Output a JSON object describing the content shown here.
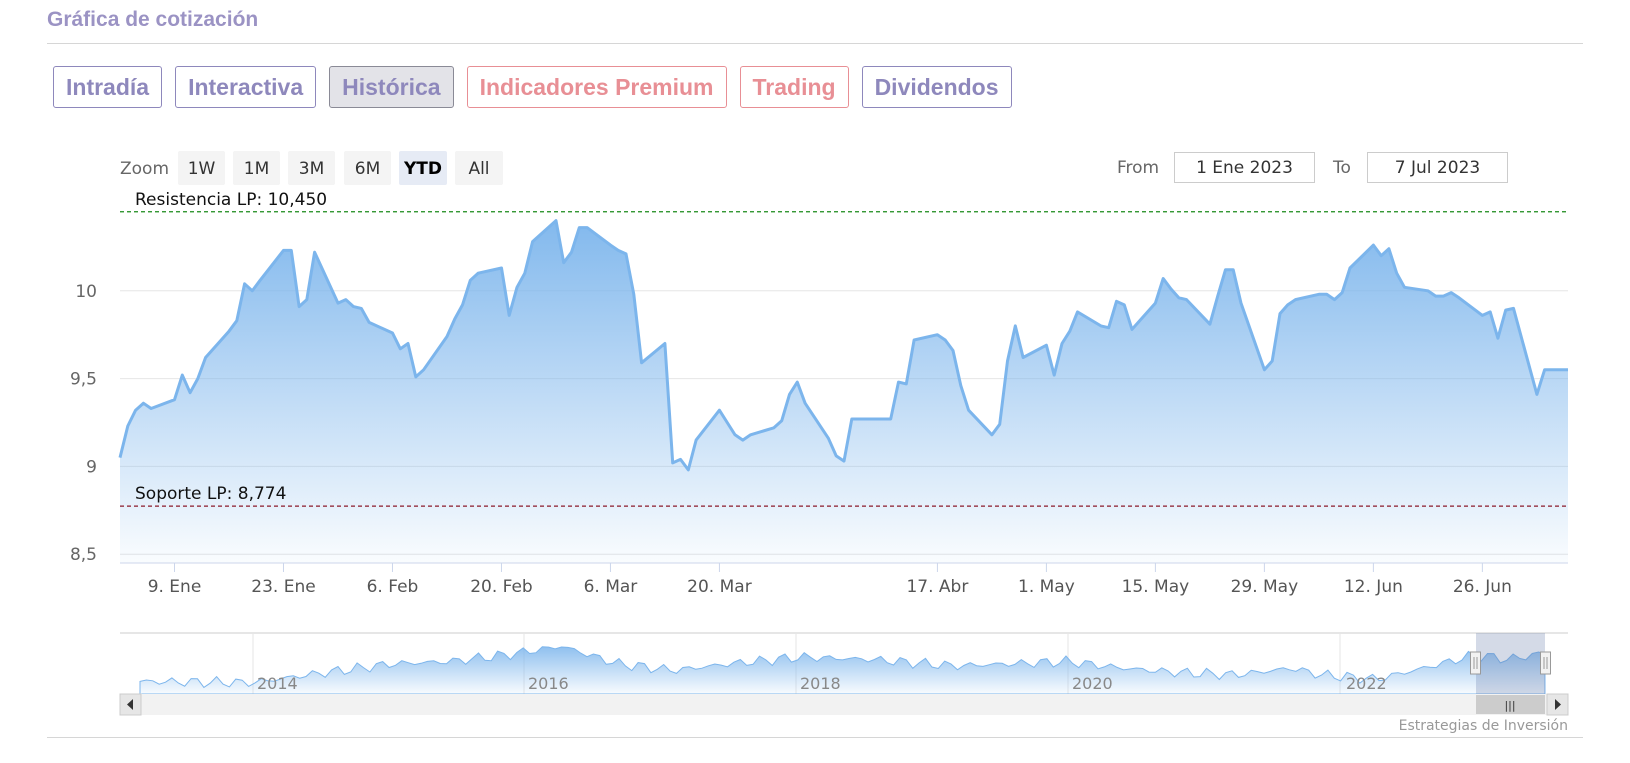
{
  "section": {
    "title": "Gráfica de cotización"
  },
  "tabs": [
    {
      "label": "Intradía",
      "active": false,
      "premium": false
    },
    {
      "label": "Interactiva",
      "active": false,
      "premium": false
    },
    {
      "label": "Histórica",
      "active": true,
      "premium": false
    },
    {
      "label": "Indicadores Premium",
      "active": false,
      "premium": true
    },
    {
      "label": "Trading",
      "active": false,
      "premium": true
    },
    {
      "label": "Dividendos",
      "active": false,
      "premium": false
    }
  ],
  "range_selector": {
    "zoom_label": "Zoom",
    "buttons": [
      "1W",
      "1M",
      "3M",
      "6M",
      "YTD",
      "All"
    ],
    "selected": "YTD",
    "from_label": "From",
    "from_value": "1 Ene 2023",
    "to_label": "To",
    "to_value": "7 Jul 2023"
  },
  "colors": {
    "line": "#7cb5ec",
    "resistance": "#1a8a1a",
    "support": "#8b1a2a",
    "accent": "#9b93c4",
    "premium": "#e88f95"
  },
  "chart_data": {
    "type": "area",
    "title": "",
    "xlabel": "",
    "ylabel": "",
    "x_range": [
      "2023-01-02",
      "2023-07-07"
    ],
    "ylim": [
      8.45,
      10.5
    ],
    "y_ticks": [
      {
        "value": 8.5,
        "label": "8,5"
      },
      {
        "value": 9,
        "label": "9"
      },
      {
        "value": 9.5,
        "label": "9,5"
      },
      {
        "value": 10,
        "label": "10"
      }
    ],
    "x_ticks": [
      {
        "date": "2023-01-09",
        "label": "9. Ene"
      },
      {
        "date": "2023-01-23",
        "label": "23. Ene"
      },
      {
        "date": "2023-02-06",
        "label": "6. Feb"
      },
      {
        "date": "2023-02-20",
        "label": "20. Feb"
      },
      {
        "date": "2023-03-06",
        "label": "6. Mar"
      },
      {
        "date": "2023-03-20",
        "label": "20. Mar"
      },
      {
        "date": "2023-04-17",
        "label": "17. Abr"
      },
      {
        "date": "2023-05-01",
        "label": "1. May"
      },
      {
        "date": "2023-05-15",
        "label": "15. May"
      },
      {
        "date": "2023-05-29",
        "label": "29. May"
      },
      {
        "date": "2023-06-12",
        "label": "12. Jun"
      },
      {
        "date": "2023-06-26",
        "label": "26. Jun"
      }
    ],
    "grid": true,
    "legend": "none",
    "plot_lines": [
      {
        "name": "resistance",
        "label": "Resistencia LP: 10,450",
        "value": 10.45
      },
      {
        "name": "support",
        "label": "Soporte LP: 8,774",
        "value": 8.774
      }
    ],
    "series": [
      {
        "points": [
          [
            "2023-01-02",
            9.05
          ],
          [
            "2023-01-03",
            9.23
          ],
          [
            "2023-01-04",
            9.32
          ],
          [
            "2023-01-05",
            9.36
          ],
          [
            "2023-01-06",
            9.33
          ],
          [
            "2023-01-09",
            9.38
          ],
          [
            "2023-01-10",
            9.52
          ],
          [
            "2023-01-11",
            9.42
          ],
          [
            "2023-01-12",
            9.5
          ],
          [
            "2023-01-13",
            9.62
          ],
          [
            "2023-01-16",
            9.77
          ],
          [
            "2023-01-17",
            9.83
          ],
          [
            "2023-01-18",
            10.04
          ],
          [
            "2023-01-19",
            10.0
          ],
          [
            "2023-01-20",
            10.06
          ],
          [
            "2023-01-23",
            10.23
          ],
          [
            "2023-01-24",
            10.23
          ],
          [
            "2023-01-25",
            9.91
          ],
          [
            "2023-01-26",
            9.95
          ],
          [
            "2023-01-27",
            10.22
          ],
          [
            "2023-01-30",
            9.93
          ],
          [
            "2023-01-31",
            9.95
          ],
          [
            "2023-02-01",
            9.91
          ],
          [
            "2023-02-02",
            9.9
          ],
          [
            "2023-02-03",
            9.82
          ],
          [
            "2023-02-06",
            9.76
          ],
          [
            "2023-02-07",
            9.67
          ],
          [
            "2023-02-08",
            9.7
          ],
          [
            "2023-02-09",
            9.51
          ],
          [
            "2023-02-10",
            9.55
          ],
          [
            "2023-02-13",
            9.74
          ],
          [
            "2023-02-14",
            9.84
          ],
          [
            "2023-02-15",
            9.92
          ],
          [
            "2023-02-16",
            10.06
          ],
          [
            "2023-02-17",
            10.1
          ],
          [
            "2023-02-20",
            10.13
          ],
          [
            "2023-02-21",
            9.86
          ],
          [
            "2023-02-22",
            10.02
          ],
          [
            "2023-02-23",
            10.1
          ],
          [
            "2023-02-24",
            10.28
          ],
          [
            "2023-02-27",
            10.4
          ],
          [
            "2023-02-28",
            10.16
          ],
          [
            "2023-03-01",
            10.22
          ],
          [
            "2023-03-02",
            10.36
          ],
          [
            "2023-03-03",
            10.36
          ],
          [
            "2023-03-06",
            10.26
          ],
          [
            "2023-03-07",
            10.23
          ],
          [
            "2023-03-08",
            10.21
          ],
          [
            "2023-03-09",
            9.98
          ],
          [
            "2023-03-10",
            9.59
          ],
          [
            "2023-03-13",
            9.7
          ],
          [
            "2023-03-14",
            9.02
          ],
          [
            "2023-03-15",
            9.04
          ],
          [
            "2023-03-16",
            8.98
          ],
          [
            "2023-03-17",
            9.15
          ],
          [
            "2023-03-20",
            9.32
          ],
          [
            "2023-03-21",
            9.25
          ],
          [
            "2023-03-22",
            9.18
          ],
          [
            "2023-03-23",
            9.15
          ],
          [
            "2023-03-24",
            9.18
          ],
          [
            "2023-03-27",
            9.22
          ],
          [
            "2023-03-28",
            9.26
          ],
          [
            "2023-03-29",
            9.41
          ],
          [
            "2023-03-30",
            9.48
          ],
          [
            "2023-03-31",
            9.36
          ],
          [
            "2023-04-03",
            9.16
          ],
          [
            "2023-04-04",
            9.06
          ],
          [
            "2023-04-05",
            9.03
          ],
          [
            "2023-04-06",
            9.27
          ],
          [
            "2023-04-11",
            9.27
          ],
          [
            "2023-04-12",
            9.48
          ],
          [
            "2023-04-13",
            9.47
          ],
          [
            "2023-04-14",
            9.72
          ],
          [
            "2023-04-17",
            9.75
          ],
          [
            "2023-04-18",
            9.72
          ],
          [
            "2023-04-19",
            9.66
          ],
          [
            "2023-04-20",
            9.46
          ],
          [
            "2023-04-21",
            9.32
          ],
          [
            "2023-04-24",
            9.18
          ],
          [
            "2023-04-25",
            9.24
          ],
          [
            "2023-04-26",
            9.6
          ],
          [
            "2023-04-27",
            9.8
          ],
          [
            "2023-04-28",
            9.62
          ],
          [
            "2023-05-01",
            9.69
          ],
          [
            "2023-05-02",
            9.52
          ],
          [
            "2023-05-03",
            9.7
          ],
          [
            "2023-05-04",
            9.77
          ],
          [
            "2023-05-05",
            9.88
          ],
          [
            "2023-05-08",
            9.8
          ],
          [
            "2023-05-09",
            9.79
          ],
          [
            "2023-05-10",
            9.94
          ],
          [
            "2023-05-11",
            9.92
          ],
          [
            "2023-05-12",
            9.78
          ],
          [
            "2023-05-15",
            9.93
          ],
          [
            "2023-05-16",
            10.07
          ],
          [
            "2023-05-17",
            10.01
          ],
          [
            "2023-05-18",
            9.96
          ],
          [
            "2023-05-19",
            9.95
          ],
          [
            "2023-05-22",
            9.81
          ],
          [
            "2023-05-23",
            9.97
          ],
          [
            "2023-05-24",
            10.12
          ],
          [
            "2023-05-25",
            10.12
          ],
          [
            "2023-05-26",
            9.93
          ],
          [
            "2023-05-29",
            9.55
          ],
          [
            "2023-05-30",
            9.6
          ],
          [
            "2023-05-31",
            9.87
          ],
          [
            "2023-06-01",
            9.92
          ],
          [
            "2023-06-02",
            9.95
          ],
          [
            "2023-06-05",
            9.98
          ],
          [
            "2023-06-06",
            9.98
          ],
          [
            "2023-06-07",
            9.95
          ],
          [
            "2023-06-08",
            9.99
          ],
          [
            "2023-06-09",
            10.13
          ],
          [
            "2023-06-12",
            10.26
          ],
          [
            "2023-06-13",
            10.2
          ],
          [
            "2023-06-14",
            10.24
          ],
          [
            "2023-06-15",
            10.1
          ],
          [
            "2023-06-16",
            10.02
          ],
          [
            "2023-06-19",
            10.0
          ],
          [
            "2023-06-20",
            9.97
          ],
          [
            "2023-06-21",
            9.97
          ],
          [
            "2023-06-22",
            9.99
          ],
          [
            "2023-06-23",
            9.96
          ],
          [
            "2023-06-26",
            9.86
          ],
          [
            "2023-06-27",
            9.88
          ],
          [
            "2023-06-28",
            9.73
          ],
          [
            "2023-06-29",
            9.89
          ],
          [
            "2023-06-30",
            9.9
          ],
          [
            "2023-07-03",
            9.41
          ],
          [
            "2023-07-04",
            9.55
          ],
          [
            "2023-07-07",
            9.55
          ]
        ]
      }
    ]
  },
  "navigator": {
    "years": [
      "2014",
      "2016",
      "2018",
      "2020",
      "2022"
    ],
    "scrollbar_grip": "|||",
    "left_arrow_icon": "arrow-left-icon",
    "right_arrow_icon": "arrow-right-icon"
  },
  "credits": "Estrategias de Inversión"
}
